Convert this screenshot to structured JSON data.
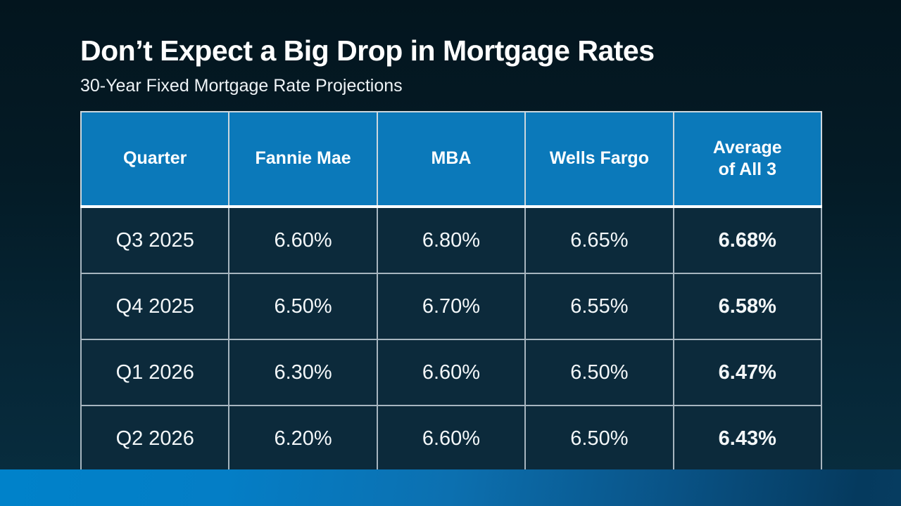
{
  "slide": {
    "title": "Don’t Expect a Big Drop in Mortgage Rates",
    "subtitle": "30-Year Fixed Mortgage Rate Projections"
  },
  "table": {
    "columns": [
      "Quarter",
      "Fannie Mae",
      "MBA",
      "Wells Fargo",
      "Average\nof All 3"
    ],
    "rows": [
      [
        "Q3 2025",
        "6.60%",
        "6.80%",
        "6.65%",
        "6.68%"
      ],
      [
        "Q4 2025",
        "6.50%",
        "6.70%",
        "6.55%",
        "6.58%"
      ],
      [
        "Q1 2026",
        "6.30%",
        "6.60%",
        "6.50%",
        "6.47%"
      ],
      [
        "Q2 2026",
        "6.20%",
        "6.60%",
        "6.50%",
        "6.43%"
      ]
    ]
  },
  "colors": {
    "background_top": "#03151e",
    "background_bottom": "#082e40",
    "header_blue": "#0b79ba",
    "cell_navy": "#0c2a3b",
    "accent_bar_left": "#0082ca",
    "accent_bar_right": "#053a5e",
    "border_light": "#ccd7de",
    "text_white": "#ffffff"
  },
  "chart_data": {
    "type": "table",
    "title": "Don’t Expect a Big Drop in Mortgage Rates",
    "subtitle": "30-Year Fixed Mortgage Rate Projections",
    "columns": [
      "Quarter",
      "Fannie Mae",
      "MBA",
      "Wells Fargo",
      "Average of All 3"
    ],
    "categories": [
      "Q3 2025",
      "Q4 2025",
      "Q1 2026",
      "Q2 2026"
    ],
    "series": [
      {
        "name": "Fannie Mae",
        "values": [
          6.6,
          6.5,
          6.3,
          6.2
        ]
      },
      {
        "name": "MBA",
        "values": [
          6.8,
          6.7,
          6.6,
          6.6
        ]
      },
      {
        "name": "Wells Fargo",
        "values": [
          6.65,
          6.55,
          6.5,
          6.5
        ]
      },
      {
        "name": "Average of All 3",
        "values": [
          6.68,
          6.58,
          6.47,
          6.43
        ]
      }
    ],
    "unit": "%"
  }
}
